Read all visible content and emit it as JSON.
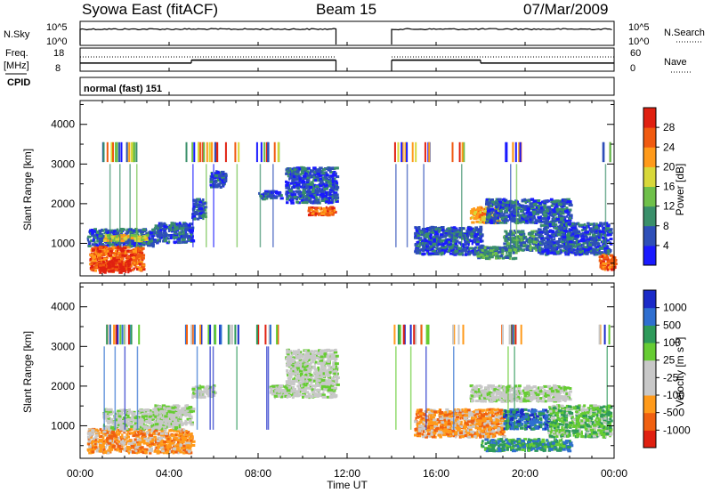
{
  "header": {
    "station": "Syowa East (fitACF)",
    "beam": "Beam 15",
    "date": "07/Mar/2009"
  },
  "chart_data": [
    {
      "type": "line",
      "name": "noise panel",
      "left_label": "N.Sky",
      "left_ticks": [
        "10^5",
        "10^0"
      ],
      "right_label": "N.Search",
      "right_ticks": [
        "10^5",
        "10^0"
      ],
      "gap_ut": [
        11.5,
        14.0
      ]
    },
    {
      "type": "line",
      "name": "frequency / nave panel",
      "left_label_lines": [
        "Freq.",
        "[MHz]"
      ],
      "left_ticks": [
        18,
        8
      ],
      "right_label": "Nave",
      "right_ticks": [
        60,
        0
      ],
      "series": [
        {
          "name": "Freq",
          "segments": [
            {
              "x": [
                0.0,
                5.0
              ],
              "y": 11.8
            },
            {
              "x": [
                5.0,
                11.5
              ],
              "y": 13.2
            },
            {
              "x": [
                14.0,
                18.0
              ],
              "y": 13.2
            },
            {
              "x": [
                18.0,
                24.0
              ],
              "y": 11.8
            }
          ]
        },
        {
          "name": "Nave",
          "segments": [
            {
              "x": [
                0.0,
                11.5
              ],
              "y": 40
            },
            {
              "x": [
                14.0,
                24.0
              ],
              "y": 40
            }
          ]
        }
      ]
    },
    {
      "type": "text",
      "cpid_label": "CPID",
      "cpid_text": "normal (fast) 151"
    },
    {
      "type": "heatmap",
      "name": "power",
      "ylabel": "Slant Range [km]",
      "yticks": [
        1000,
        2000,
        3000,
        4000
      ],
      "ylim": [
        180,
        4600
      ],
      "xlim": [
        0,
        24
      ],
      "colorbar_label": "Power [dB]",
      "colorbar_ticks": [
        4,
        8,
        12,
        16,
        20,
        24,
        28
      ],
      "colorbar_colors": [
        "#1a1aff",
        "#2e4fb8",
        "#3a8f6a",
        "#6fc04a",
        "#d8d83a",
        "#ff9a1a",
        "#f05a10",
        "#e02010"
      ],
      "regions": [
        {
          "x": [
            0.3,
            3.3
          ],
          "y": [
            900,
            1350
          ],
          "level": 1
        },
        {
          "x": [
            3.3,
            5.0
          ],
          "y": [
            1000,
            1500
          ],
          "level": 1
        },
        {
          "x": [
            0.4,
            2.8
          ],
          "y": [
            300,
            900
          ],
          "level": 6
        },
        {
          "x": [
            0.8,
            2.2
          ],
          "y": [
            250,
            550
          ],
          "level": 7
        },
        {
          "x": [
            1.0,
            3.0
          ],
          "y": [
            1050,
            1200
          ],
          "level": 4
        },
        {
          "x": [
            5.8,
            6.5
          ],
          "y": [
            2400,
            2800
          ],
          "level": 1
        },
        {
          "x": [
            5.0,
            5.6
          ],
          "y": [
            1600,
            2100
          ],
          "level": 1
        },
        {
          "x": [
            9.2,
            11.5
          ],
          "y": [
            2000,
            2900
          ],
          "level": 1
        },
        {
          "x": [
            10.2,
            11.4
          ],
          "y": [
            1700,
            1900
          ],
          "level": 6
        },
        {
          "x": [
            8.0,
            9.0
          ],
          "y": [
            2100,
            2300
          ],
          "level": 1
        },
        {
          "x": [
            15.0,
            18.0
          ],
          "y": [
            700,
            1400
          ],
          "level": 1
        },
        {
          "x": [
            17.8,
            19.5
          ],
          "y": [
            600,
            900
          ],
          "level": 2
        },
        {
          "x": [
            17.5,
            18.8
          ],
          "y": [
            1500,
            1900
          ],
          "level": 5
        },
        {
          "x": [
            18.2,
            22.0
          ],
          "y": [
            1500,
            2100
          ],
          "level": 1
        },
        {
          "x": [
            19.0,
            20.5
          ],
          "y": [
            800,
            1300
          ],
          "level": 2
        },
        {
          "x": [
            20.5,
            23.8
          ],
          "y": [
            700,
            1500
          ],
          "level": 1
        },
        {
          "x": [
            23.3,
            24.0
          ],
          "y": [
            300,
            700
          ],
          "level": 6
        }
      ],
      "bursts_x": [
        1.2,
        1.6,
        2.0,
        2.4,
        5.0,
        5.6,
        6.0,
        6.8,
        8.2,
        8.6,
        14.3,
        14.8,
        15.5,
        17.0,
        19.2,
        19.6,
        23.5
      ]
    },
    {
      "type": "heatmap",
      "name": "velocity",
      "ylabel": "Slant Range [km]",
      "yticks": [
        1000,
        2000,
        3000,
        4000
      ],
      "ylim": [
        180,
        4600
      ],
      "xlim": [
        0,
        24
      ],
      "colorbar_label": "Velocity [m s^-1]",
      "colorbar_ticks": [
        "1000",
        "500",
        "100",
        "25",
        "-25",
        "-100",
        "-500",
        "-1000"
      ],
      "colorbar_colors": [
        "#1a2ac8",
        "#2f6fd0",
        "#2e9a5a",
        "#66cc33",
        "#c8c8c8",
        "#c8c8c8",
        "#ff9a1a",
        "#f06010",
        "#e02010"
      ],
      "regions": [
        {
          "x": [
            0.3,
            5.0
          ],
          "y": [
            300,
            900
          ],
          "level": 6
        },
        {
          "x": [
            1.0,
            4.5
          ],
          "y": [
            900,
            1400
          ],
          "level": 4
        },
        {
          "x": [
            3.3,
            5.0
          ],
          "y": [
            1000,
            1500
          ],
          "level": 4
        },
        {
          "x": [
            9.2,
            11.5
          ],
          "y": [
            2000,
            2900
          ],
          "level": 4
        },
        {
          "x": [
            8.5,
            11.5
          ],
          "y": [
            1700,
            2000
          ],
          "level": 4
        },
        {
          "x": [
            5.0,
            6.0
          ],
          "y": [
            1700,
            2000
          ],
          "level": 4
        },
        {
          "x": [
            15.0,
            19.0
          ],
          "y": [
            700,
            1400
          ],
          "level": 6
        },
        {
          "x": [
            17.5,
            22.0
          ],
          "y": [
            1600,
            2000
          ],
          "level": 4
        },
        {
          "x": [
            19.0,
            21.0
          ],
          "y": [
            900,
            1400
          ],
          "level": 1
        },
        {
          "x": [
            21.0,
            23.8
          ],
          "y": [
            700,
            1500
          ],
          "level": 3
        },
        {
          "x": [
            18.0,
            22.0
          ],
          "y": [
            350,
            650
          ],
          "level": 2
        }
      ],
      "bursts_x": [
        1.2,
        1.6,
        2.0,
        2.4,
        5.0,
        5.6,
        6.0,
        6.8,
        8.2,
        8.6,
        14.3,
        14.8,
        15.5,
        17.0,
        19.2,
        19.6,
        23.5
      ]
    }
  ],
  "x_axis": {
    "label": "Time UT",
    "ticks": [
      "00:00",
      "04:00",
      "08:00",
      "12:00",
      "16:00",
      "20:00",
      "00:00"
    ]
  }
}
